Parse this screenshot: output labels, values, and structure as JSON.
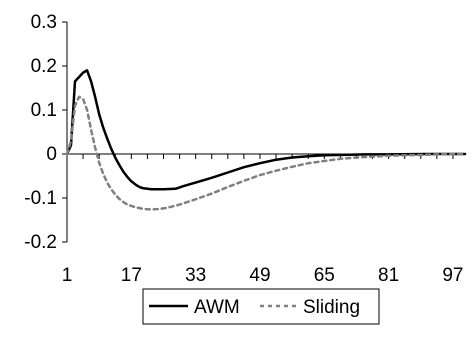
{
  "chart_data": {
    "type": "line",
    "title": "",
    "xlabel": "",
    "ylabel": "",
    "xlim": [
      1,
      100
    ],
    "ylim": [
      -0.2,
      0.3
    ],
    "xticks": [
      1,
      17,
      33,
      49,
      65,
      81,
      97
    ],
    "xtick_labels": [
      "1",
      "17",
      "33",
      "49",
      "65",
      "81",
      "97"
    ],
    "yticks": [
      -0.2,
      -0.1,
      0,
      0.1,
      0.2,
      0.3
    ],
    "ytick_labels": [
      "-0.2",
      "-0.1",
      "0",
      "0.1",
      "0.2",
      "0.3"
    ],
    "grid": false,
    "legend_position": "bottom",
    "series": [
      {
        "name": "AWM",
        "style": "solid",
        "color": "#000000",
        "points": [
          [
            1,
            0
          ],
          [
            2,
            0.02
          ],
          [
            3,
            0.165
          ],
          [
            4,
            0.175
          ],
          [
            5,
            0.185
          ],
          [
            6,
            0.19
          ],
          [
            7,
            0.165
          ],
          [
            8,
            0.13
          ],
          [
            9,
            0.09
          ],
          [
            10,
            0.06
          ],
          [
            11,
            0.035
          ],
          [
            12,
            0.012
          ],
          [
            13,
            -0.008
          ],
          [
            14,
            -0.025
          ],
          [
            15,
            -0.04
          ],
          [
            16,
            -0.052
          ],
          [
            17,
            -0.062
          ],
          [
            18,
            -0.069
          ],
          [
            19,
            -0.075
          ],
          [
            20,
            -0.078
          ],
          [
            22,
            -0.08
          ],
          [
            25,
            -0.08
          ],
          [
            28,
            -0.079
          ],
          [
            30,
            -0.073
          ],
          [
            33,
            -0.065
          ],
          [
            37,
            -0.054
          ],
          [
            41,
            -0.042
          ],
          [
            45,
            -0.03
          ],
          [
            49,
            -0.021
          ],
          [
            53,
            -0.013
          ],
          [
            57,
            -0.008
          ],
          [
            61,
            -0.005
          ],
          [
            65,
            -0.003
          ],
          [
            70,
            -0.002
          ],
          [
            75,
            -0.001
          ],
          [
            81,
            -0.001
          ],
          [
            90,
            0
          ],
          [
            97,
            0
          ],
          [
            100,
            0
          ]
        ]
      },
      {
        "name": "Sliding",
        "style": "dashed",
        "color": "#808080",
        "points": [
          [
            1,
            0
          ],
          [
            2,
            0.03
          ],
          [
            3,
            0.11
          ],
          [
            4,
            0.13
          ],
          [
            5,
            0.125
          ],
          [
            6,
            0.1
          ],
          [
            7,
            0.055
          ],
          [
            8,
            0.015
          ],
          [
            9,
            -0.02
          ],
          [
            10,
            -0.045
          ],
          [
            11,
            -0.065
          ],
          [
            12,
            -0.08
          ],
          [
            13,
            -0.092
          ],
          [
            14,
            -0.102
          ],
          [
            15,
            -0.109
          ],
          [
            16,
            -0.115
          ],
          [
            18,
            -0.121
          ],
          [
            20,
            -0.125
          ],
          [
            22,
            -0.126
          ],
          [
            24,
            -0.125
          ],
          [
            26,
            -0.122
          ],
          [
            29,
            -0.115
          ],
          [
            33,
            -0.103
          ],
          [
            37,
            -0.09
          ],
          [
            41,
            -0.075
          ],
          [
            45,
            -0.061
          ],
          [
            49,
            -0.048
          ],
          [
            53,
            -0.038
          ],
          [
            57,
            -0.029
          ],
          [
            61,
            -0.021
          ],
          [
            65,
            -0.016
          ],
          [
            69,
            -0.011
          ],
          [
            73,
            -0.008
          ],
          [
            77,
            -0.006
          ],
          [
            81,
            -0.004
          ],
          [
            85,
            -0.003
          ],
          [
            89,
            -0.002
          ],
          [
            93,
            -0.001
          ],
          [
            97,
            0
          ],
          [
            100,
            0
          ]
        ]
      }
    ]
  }
}
